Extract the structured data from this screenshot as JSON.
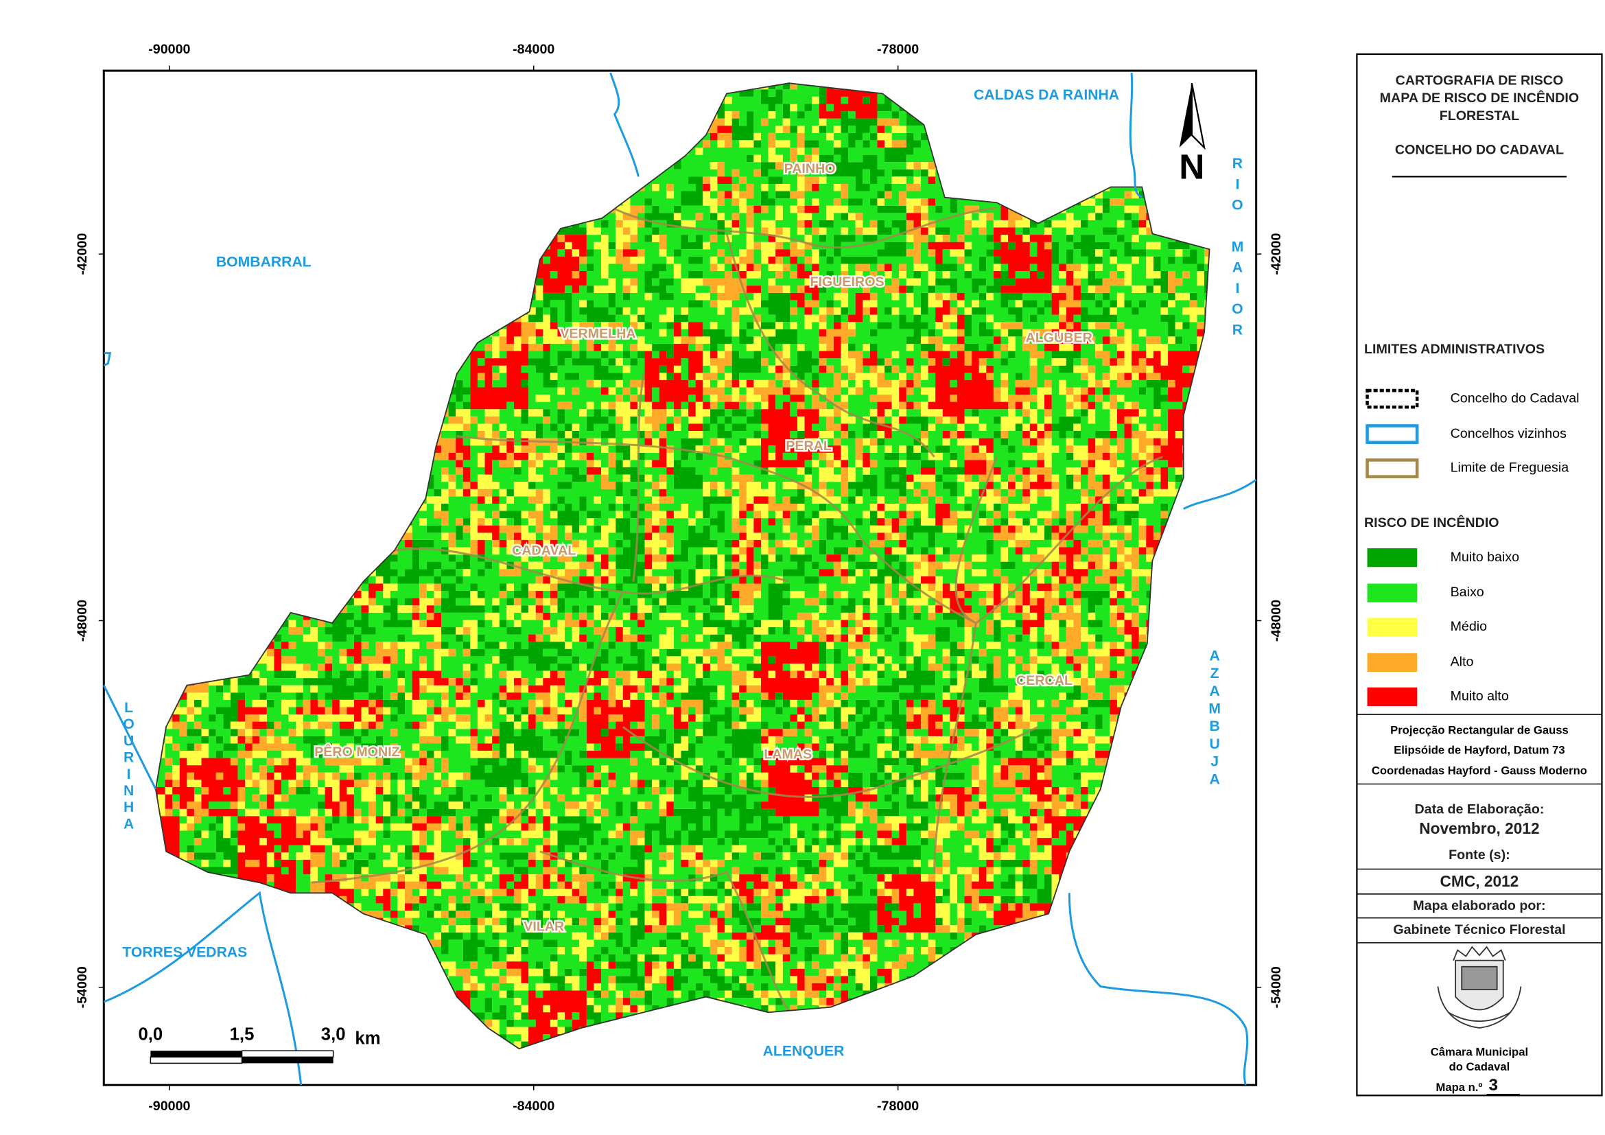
{
  "map": {
    "xlim": [
      -91080,
      -72100
    ],
    "ylim": [
      -55600,
      -39000
    ],
    "xticks": [
      -90000,
      -84000,
      -78000
    ],
    "yticks": [
      -42000,
      -48000,
      -54000
    ],
    "north": "N",
    "neighbors": [
      "CALDAS DA RAINHA",
      "BOMBARRAL",
      "RIO MAIOR",
      "AZAMBUJA",
      "LOURINHA",
      "TORRES VEDRAS",
      "ALENQUER"
    ],
    "parishes": [
      "PAINHO",
      "FIGUEIROS",
      "VERMELHA",
      "ALGUBER",
      "PERAL",
      "CADAVAL",
      "CERCAL",
      "PÊRO MONIZ",
      "LAMAS",
      "VILAR"
    ],
    "scale_bar": {
      "labels": [
        "0,0",
        "1,5",
        "3,0"
      ],
      "unit": "km"
    }
  },
  "panel": {
    "title": [
      "CARTOGRAFIA DE RISCO",
      "MAPA DE RISCO DE INCÊNDIO",
      "FLORESTAL"
    ],
    "subtitle": "CONCELHO DO CADAVAL",
    "admin_legend": {
      "heading": "LIMITES ADMINISTRATIVOS",
      "items": [
        "Concelho do Cadaval",
        "Concelhos vizinhos",
        "Limite de Freguesia"
      ]
    },
    "risk_legend": {
      "heading": "RISCO DE INCÊNDIO",
      "items": [
        {
          "label": "Muito baixo",
          "color": "#00a600"
        },
        {
          "label": "Baixo",
          "color": "#1ee61e"
        },
        {
          "label": "Médio",
          "color": "#ffff46"
        },
        {
          "label": "Alto",
          "color": "#ffaa28"
        },
        {
          "label": "Muito alto",
          "color": "#ff0000"
        }
      ]
    },
    "projection": [
      "Projecção Rectangular de Gauss",
      "Elipsóide de Hayford, Datum 73",
      "Coordenadas Hayford - Gauss Moderno"
    ],
    "date_label": "Data de Elaboração:",
    "date": "Novembro, 2012",
    "source_label": "Fonte (s):",
    "source": "CMC, 2012",
    "author_label": "Mapa elaborado por:",
    "author": "Gabinete Técnico Florestal",
    "institution": [
      "Câmara Municipal",
      "do Cadaval"
    ],
    "map_number_label": "Mapa n.º",
    "map_number": "3"
  }
}
